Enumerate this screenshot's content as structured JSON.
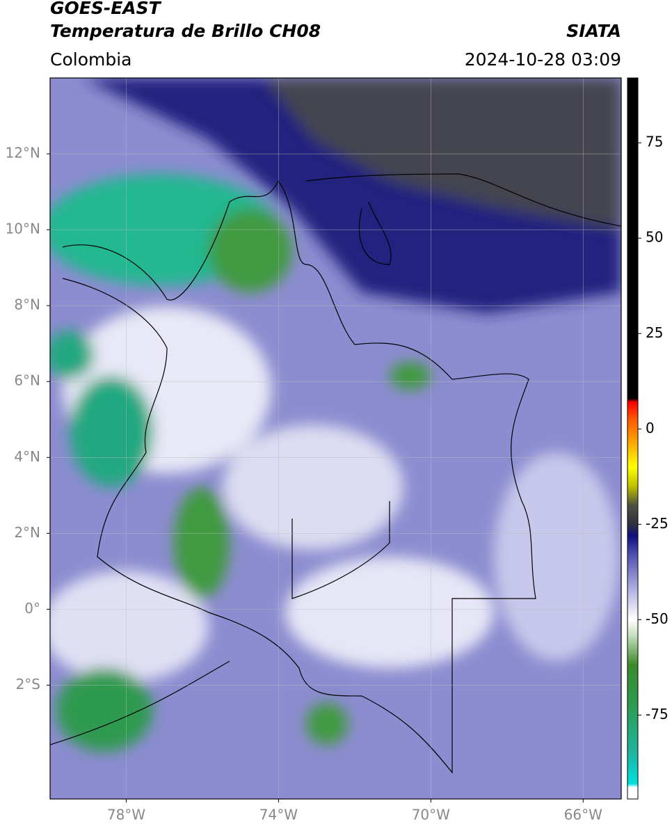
{
  "header": {
    "title": "GOES-EAST",
    "subtitle": "Temperatura de Brillo CH08",
    "source": "SIATA",
    "region": "Colombia",
    "datetime": "2024-10-28 03:09"
  },
  "map": {
    "xlim": [
      -80,
      -65
    ],
    "ylim": [
      -5,
      14
    ],
    "xticks": [
      {
        "value": -78,
        "label": "78°W"
      },
      {
        "value": -74,
        "label": "74°W"
      },
      {
        "value": -70,
        "label": "70°W"
      },
      {
        "value": -66,
        "label": "66°W"
      }
    ],
    "yticks": [
      {
        "value": 12,
        "label": "12°N"
      },
      {
        "value": 10,
        "label": "10°N"
      },
      {
        "value": 8,
        "label": "8°N"
      },
      {
        "value": 6,
        "label": "6°N"
      },
      {
        "value": 4,
        "label": "4°N"
      },
      {
        "value": 2,
        "label": "2°N"
      },
      {
        "value": 0,
        "label": "0°"
      },
      {
        "value": -2,
        "label": "2°S"
      }
    ],
    "grid": true
  },
  "colorbar": {
    "lim": [
      -97,
      92
    ],
    "ticks": [
      75,
      50,
      25,
      0,
      -25,
      -50,
      -75
    ],
    "colormap": [
      [
        -97,
        "#ffffff"
      ],
      [
        -94,
        "#ffffff"
      ],
      [
        -93,
        "#00e0e0"
      ],
      [
        -85,
        "#1fb5a0"
      ],
      [
        -72,
        "#2e9a50"
      ],
      [
        -62,
        "#3a8a2a"
      ],
      [
        -54,
        "#c8e0c0"
      ],
      [
        -50,
        "#ffffff"
      ],
      [
        -42,
        "#b0b0e0"
      ],
      [
        -33,
        "#5050b0"
      ],
      [
        -28,
        "#101080"
      ],
      [
        -25,
        "#303040"
      ],
      [
        -20,
        "#505040"
      ],
      [
        -15,
        "#c0c000"
      ],
      [
        -10,
        "#ffff00"
      ],
      [
        -3,
        "#ffa000"
      ],
      [
        3,
        "#ff5000"
      ],
      [
        7,
        "#ff0000"
      ],
      [
        8,
        "#000000"
      ],
      [
        92,
        "#000000"
      ]
    ]
  }
}
